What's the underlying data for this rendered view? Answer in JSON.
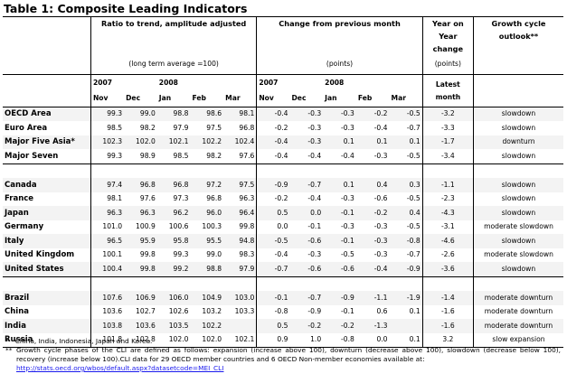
{
  "title": "Table 1: Composite Leading Indicators",
  "headers": {
    "ratio": "Ratio to trend, amplitude adjusted",
    "ratio_sub": "(long term average =100)",
    "change": "Change from previous month",
    "change_sub": "(points)",
    "yoy": "Year on Year change",
    "yoy_sub": "(points)",
    "outlook": "Growth cycle outlook**",
    "year_2007": "2007",
    "year_2008": "2008",
    "latest": "Latest month",
    "months": [
      "Nov",
      "Dec",
      "Jan",
      "Feb",
      "Mar"
    ]
  },
  "groups": [
    [
      {
        "name": "OECD Area",
        "ratio": [
          "99.3",
          "99.0",
          "98.8",
          "98.6",
          "98.1"
        ],
        "change": [
          "-0.4",
          "-0.3",
          "-0.3",
          "-0.2",
          "-0.5"
        ],
        "yoy": "-3.2",
        "outlook": "slowdown"
      },
      {
        "name": "Euro Area",
        "ratio": [
          "98.5",
          "98.2",
          "97.9",
          "97.5",
          "96.8"
        ],
        "change": [
          "-0.2",
          "-0.3",
          "-0.3",
          "-0.4",
          "-0.7"
        ],
        "yoy": "-3.3",
        "outlook": "slowdown"
      },
      {
        "name": "Major Five Asia*",
        "ratio": [
          "102.3",
          "102.0",
          "102.1",
          "102.2",
          "102.4"
        ],
        "change": [
          "-0.4",
          "-0.3",
          "0.1",
          "0.1",
          "0.1"
        ],
        "yoy": "-1.7",
        "outlook": "downturn"
      },
      {
        "name": "Major Seven",
        "ratio": [
          "99.3",
          "98.9",
          "98.5",
          "98.2",
          "97.6"
        ],
        "change": [
          "-0.4",
          "-0.4",
          "-0.4",
          "-0.3",
          "-0.5"
        ],
        "yoy": "-3.4",
        "outlook": "slowdown"
      }
    ],
    [
      {
        "name": "Canada",
        "ratio": [
          "97.4",
          "96.8",
          "96.8",
          "97.2",
          "97.5"
        ],
        "change": [
          "-0.9",
          "-0.7",
          "0.1",
          "0.4",
          "0.3"
        ],
        "yoy": "-1.1",
        "outlook": "slowdown"
      },
      {
        "name": "France",
        "ratio": [
          "98.1",
          "97.6",
          "97.3",
          "96.8",
          "96.3"
        ],
        "change": [
          "-0.2",
          "-0.4",
          "-0.3",
          "-0.6",
          "-0.5"
        ],
        "yoy": "-2.3",
        "outlook": "slowdown"
      },
      {
        "name": "Japan",
        "ratio": [
          "96.3",
          "96.3",
          "96.2",
          "96.0",
          "96.4"
        ],
        "change": [
          "0.5",
          "0.0",
          "-0.1",
          "-0.2",
          "0.4"
        ],
        "yoy": "-4.3",
        "outlook": "slowdown"
      },
      {
        "name": "Germany",
        "ratio": [
          "101.0",
          "100.9",
          "100.6",
          "100.3",
          "99.8"
        ],
        "change": [
          "0.0",
          "-0.1",
          "-0.3",
          "-0.3",
          "-0.5"
        ],
        "yoy": "-3.1",
        "outlook": "moderate slowdown"
      },
      {
        "name": "Italy",
        "ratio": [
          "96.5",
          "95.9",
          "95.8",
          "95.5",
          "94.8"
        ],
        "change": [
          "-0.5",
          "-0.6",
          "-0.1",
          "-0.3",
          "-0.8"
        ],
        "yoy": "-4.6",
        "outlook": "slowdown"
      },
      {
        "name": "United Kingdom",
        "ratio": [
          "100.1",
          "99.8",
          "99.3",
          "99.0",
          "98.3"
        ],
        "change": [
          "-0.4",
          "-0.3",
          "-0.5",
          "-0.3",
          "-0.7"
        ],
        "yoy": "-2.6",
        "outlook": "moderate slowdown"
      },
      {
        "name": "United States",
        "ratio": [
          "100.4",
          "99.8",
          "99.2",
          "98.8",
          "97.9"
        ],
        "change": [
          "-0.7",
          "-0.6",
          "-0.6",
          "-0.4",
          "-0.9"
        ],
        "yoy": "-3.6",
        "outlook": "slowdown"
      }
    ],
    [
      {
        "name": "Brazil",
        "ratio": [
          "107.6",
          "106.9",
          "106.0",
          "104.9",
          "103.0"
        ],
        "change": [
          "-0.1",
          "-0.7",
          "-0.9",
          "-1.1",
          "-1.9"
        ],
        "yoy": "-1.4",
        "outlook": "moderate downturn"
      },
      {
        "name": "China",
        "ratio": [
          "103.6",
          "102.7",
          "102.6",
          "103.2",
          "103.3"
        ],
        "change": [
          "-0.8",
          "-0.9",
          "-0.1",
          "0.6",
          "0.1"
        ],
        "yoy": "-1.6",
        "outlook": "moderate downturn"
      },
      {
        "name": "India",
        "ratio": [
          "103.8",
          "103.6",
          "103.5",
          "102.2",
          ""
        ],
        "change": [
          "0.5",
          "-0.2",
          "-0.2",
          "-1.3",
          ""
        ],
        "yoy": "-1.6",
        "outlook": "moderate downturn"
      },
      {
        "name": "Russia",
        "ratio": [
          "101.8",
          "102.8",
          "102.0",
          "102.0",
          "102.1"
        ],
        "change": [
          "0.9",
          "1.0",
          "-0.8",
          "0.0",
          "0.1"
        ],
        "yoy": "3.2",
        "outlook": "slow expansion"
      }
    ]
  ],
  "notes": {
    "n1_mark": "*",
    "n1": "China, India, Indonesia, Japan and Korea.",
    "n2_mark": "**",
    "n2": "Growth cycle phases of the CLI are defined as follows: expansion (increase above 100), downturn (decrease above 100), slowdown (decrease below 100), recovery (increase below 100).CLI data for 29 OECD member countries and 6 OECD Non-member economies available at:",
    "link": "http://stats.oecd.org/wbos/default.aspx?datasetcode=MEI_CLI"
  }
}
